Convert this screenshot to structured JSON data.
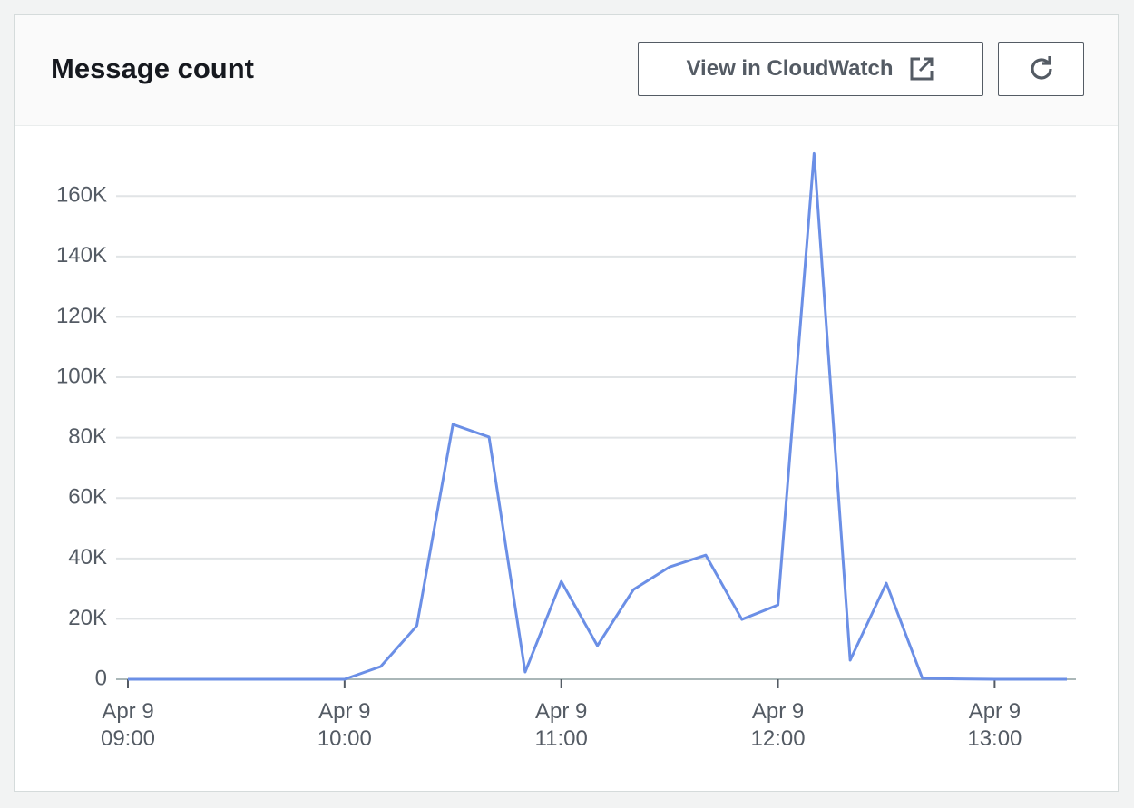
{
  "header": {
    "title": "Message count",
    "button_cloudwatch": "View in CloudWatch"
  },
  "chart_data": {
    "type": "line",
    "x": [
      "Apr 9 09:00",
      "Apr 9 09:10",
      "Apr 9 09:20",
      "Apr 9 09:30",
      "Apr 9 09:40",
      "Apr 9 09:50",
      "Apr 9 10:00",
      "Apr 9 10:10",
      "Apr 9 10:20",
      "Apr 9 10:30",
      "Apr 9 10:40",
      "Apr 9 10:50",
      "Apr 9 11:00",
      "Apr 9 11:10",
      "Apr 9 11:20",
      "Apr 9 11:30",
      "Apr 9 11:40",
      "Apr 9 11:50",
      "Apr 9 12:00",
      "Apr 9 12:10",
      "Apr 9 12:20",
      "Apr 9 12:30",
      "Apr 9 12:40",
      "Apr 9 12:50",
      "Apr 9 13:00",
      "Apr 9 13:10",
      "Apr 9 13:20"
    ],
    "series": [
      {
        "name": "Message count",
        "color": "#6b8fe6",
        "values": [
          0,
          0,
          0,
          0,
          0,
          0,
          0,
          4200,
          17700,
          84400,
          80200,
          2400,
          32400,
          11100,
          29700,
          37200,
          41100,
          19800,
          24600,
          174100,
          6300,
          31800,
          300,
          100,
          0,
          0,
          0
        ]
      }
    ],
    "xlim": [
      "Apr 9 09:00",
      "Apr 9 13:20"
    ],
    "xticks": [
      {
        "value": "Apr 9 09:00",
        "label": "Apr 9\n09:00"
      },
      {
        "value": "Apr 9 10:00",
        "label": "Apr 9\n10:00"
      },
      {
        "value": "Apr 9 11:00",
        "label": "Apr 9\n11:00"
      },
      {
        "value": "Apr 9 12:00",
        "label": "Apr 9\n12:00"
      },
      {
        "value": "Apr 9 13:00",
        "label": "Apr 9\n13:00"
      }
    ],
    "ylim": [
      0,
      176000
    ],
    "yticks": [
      0,
      {
        "value": 20000,
        "label": "20K"
      },
      {
        "value": 40000,
        "label": "40K"
      },
      {
        "value": 60000,
        "label": "60K"
      },
      {
        "value": 80000,
        "label": "80K"
      },
      {
        "value": 100000,
        "label": "100K"
      },
      {
        "value": 120000,
        "label": "120K"
      },
      {
        "value": 140000,
        "label": "140K"
      },
      {
        "value": 160000,
        "label": "160K"
      }
    ],
    "grid": true
  }
}
